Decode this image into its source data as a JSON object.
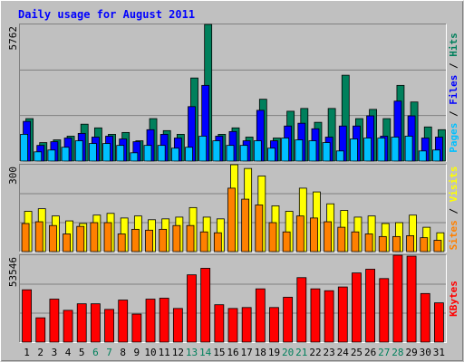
{
  "chart_data": [
    {
      "type": "bar",
      "title": "Daily usage for August 2011",
      "ylim": [
        0,
        5762
      ],
      "yticks": [
        5762
      ],
      "legend_separator": " / ",
      "series": [
        {
          "name": "Pages",
          "color": "#00c0ff",
          "values": [
            1129,
            389,
            467,
            584,
            856,
            740,
            740,
            662,
            350,
            662,
            662,
            545,
            584,
            1051,
            856,
            662,
            662,
            856,
            545,
            973,
            895,
            856,
            779,
            428,
            934,
            973,
            973,
            1012,
            1051,
            428,
            467
          ]
        },
        {
          "name": "Files",
          "color": "#0000ff",
          "values": [
            1674,
            662,
            818,
            973,
            1168,
            1012,
            1051,
            934,
            818,
            1324,
            1129,
            973,
            2297,
            3192,
            1051,
            1246,
            856,
            2141,
            856,
            1479,
            1596,
            1363,
            1012,
            1479,
            1479,
            1908,
            1051,
            2530,
            1908,
            973,
            1012
          ]
        },
        {
          "name": "Hits",
          "color": "#00805c",
          "values": [
            1791,
            779,
            895,
            1051,
            1557,
            1401,
            1129,
            1207,
            856,
            1791,
            1285,
            1129,
            3504,
            5762,
            1129,
            1401,
            1012,
            2608,
            973,
            2102,
            2219,
            1635,
            2219,
            3620,
            1791,
            2180,
            1791,
            3192,
            2492,
            1440,
            1324
          ]
        }
      ]
    },
    {
      "type": "bar",
      "ylim": [
        0,
        300
      ],
      "yticks": [
        300
      ],
      "legend_separator": " / ",
      "series": [
        {
          "name": "Sites",
          "color": "#ff8000",
          "values": [
            97,
            103,
            90,
            61,
            87,
            100,
            100,
            61,
            77,
            74,
            77,
            90,
            90,
            68,
            65,
            219,
            181,
            161,
            100,
            68,
            123,
            116,
            103,
            84,
            68,
            61,
            52,
            52,
            55,
            48,
            39
          ]
        },
        {
          "name": "Visits",
          "color": "#ffff00",
          "values": [
            139,
            148,
            123,
            106,
            97,
            126,
            132,
            116,
            123,
            110,
            113,
            119,
            152,
            119,
            113,
            300,
            287,
            261,
            158,
            139,
            219,
            206,
            165,
            142,
            119,
            123,
            97,
            100,
            126,
            84,
            65
          ]
        }
      ]
    },
    {
      "type": "bar",
      "ylim": [
        0,
        53546
      ],
      "yticks": [
        53546
      ],
      "categories": [
        "1",
        "2",
        "3",
        "4",
        "5",
        "6",
        "7",
        "8",
        "9",
        "10",
        "11",
        "12",
        "13",
        "14",
        "15",
        "16",
        "17",
        "18",
        "19",
        "20",
        "21",
        "22",
        "23",
        "24",
        "25",
        "26",
        "27",
        "28",
        "29",
        "30",
        "31"
      ],
      "category_color": "#000000",
      "highlight_indices": [
        5,
        6,
        12,
        13,
        19,
        20,
        26,
        27
      ],
      "highlight_color": "#00805c",
      "series": [
        {
          "name": "KBytes",
          "color": "#ff0000",
          "values": [
            32244,
            14971,
            26487,
            19577,
            23608,
            23608,
            20153,
            25911,
            17274,
            26487,
            27063,
            20729,
            41458,
            45488,
            23032,
            20729,
            21305,
            32821,
            21305,
            27638,
            39730,
            32821,
            31669,
            33972,
            42609,
            44912,
            39154,
            53546,
            52970,
            29942,
            24184
          ]
        }
      ]
    }
  ]
}
